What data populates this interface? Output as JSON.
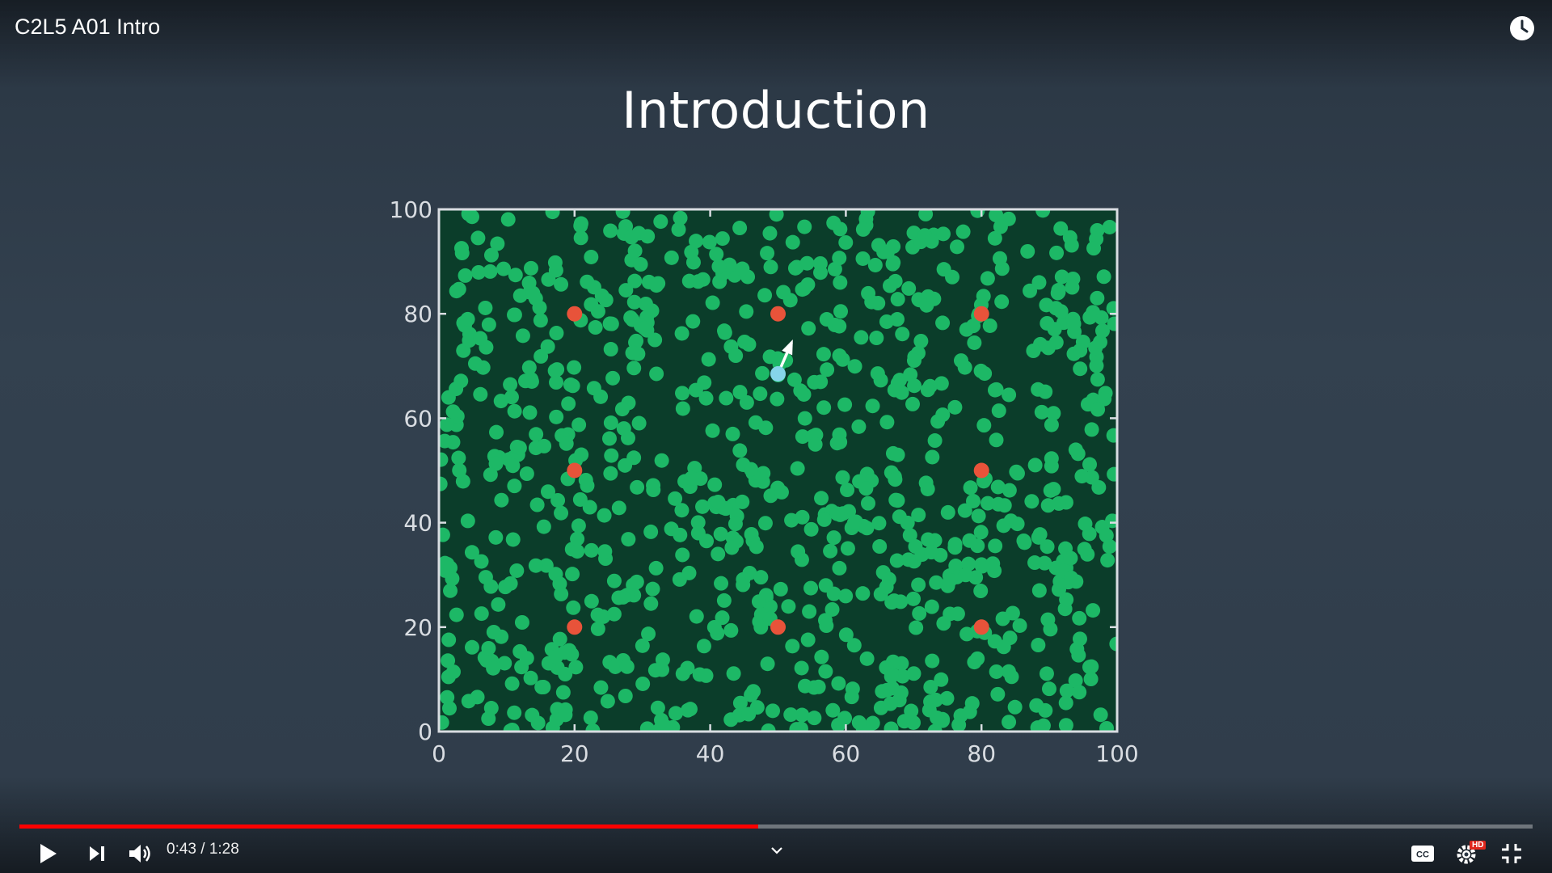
{
  "player": {
    "title": "C2L5 A01 Intro",
    "slide_title": "Introduction",
    "current_time": "0:43",
    "duration": "1:28",
    "time_separator": " / ",
    "progress_fraction": 0.488,
    "hd_badge": "HD",
    "accent_color": "#ff0000",
    "icons": {
      "watch_later": "clock-icon",
      "play": "play-icon",
      "next": "next-icon",
      "volume": "volume-icon",
      "chapters": "chevron-down-icon",
      "captions": "cc-icon",
      "settings": "gear-icon",
      "exit_fullscreen": "exit-fullscreen-icon"
    }
  },
  "chart_data": {
    "type": "scatter",
    "title": "",
    "xlabel": "",
    "ylabel": "",
    "xlim": [
      0,
      100
    ],
    "ylim": [
      0,
      100
    ],
    "xticks": [
      "0",
      "20",
      "40",
      "60",
      "80",
      "100"
    ],
    "yticks": [
      "0",
      "20",
      "40",
      "60",
      "80",
      "100"
    ],
    "colors": {
      "background": "#0b3d2a",
      "particles": "#1db866",
      "landmarks": "#e8533a",
      "robot": "#86d5ea",
      "axes": "#d9dde2",
      "heading": "#ffffff"
    },
    "landmarks": [
      {
        "x": 20,
        "y": 80
      },
      {
        "x": 50,
        "y": 80
      },
      {
        "x": 80,
        "y": 80
      },
      {
        "x": 20,
        "y": 50
      },
      {
        "x": 80,
        "y": 50
      },
      {
        "x": 20,
        "y": 20
      },
      {
        "x": 50,
        "y": 20
      },
      {
        "x": 80,
        "y": 20
      }
    ],
    "robot": {
      "x": 50,
      "y": 68.5,
      "heading_to": {
        "x": 52,
        "y": 74.5
      }
    },
    "particles": {
      "count": 900,
      "xlim": [
        0,
        100
      ],
      "ylim": [
        0,
        100
      ],
      "distribution": "uniform random"
    }
  }
}
